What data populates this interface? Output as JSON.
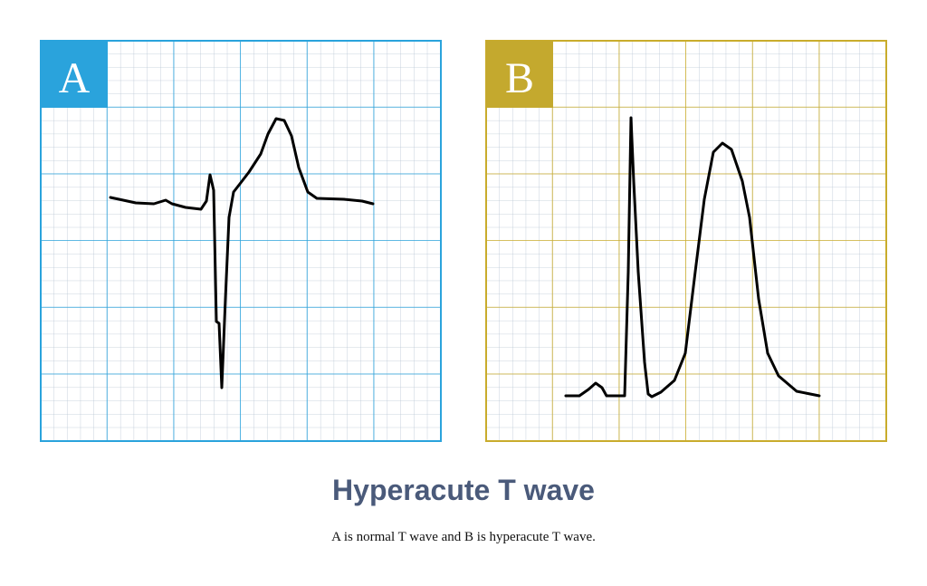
{
  "panels": [
    {
      "label": "A"
    },
    {
      "label": "B"
    }
  ],
  "title": "Hyperacute T wave",
  "caption": "A is normal T wave and B is hyperacute T wave."
}
